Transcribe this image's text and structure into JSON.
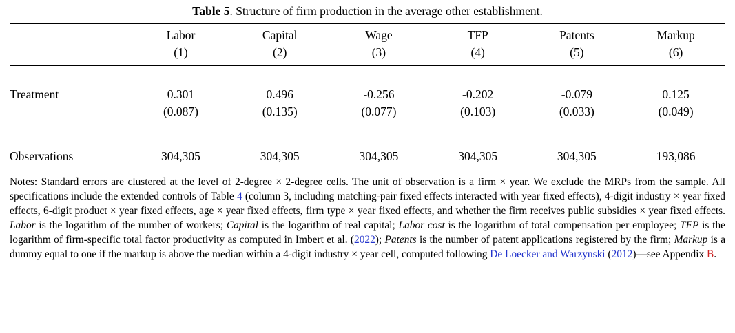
{
  "title": {
    "bold": "Table 5",
    "rest": ". Structure of firm production in the average other establishment."
  },
  "table": {
    "columns": [
      "Labor",
      "Capital",
      "Wage",
      "TFP",
      "Patents",
      "Markup"
    ],
    "column_numbers": [
      "(1)",
      "(2)",
      "(3)",
      "(4)",
      "(5)",
      "(6)"
    ],
    "row_labels": {
      "treatment": "Treatment",
      "observations": "Observations"
    },
    "treatment": [
      "0.301",
      "0.496",
      "-0.256",
      "-0.202",
      "-0.079",
      "0.125"
    ],
    "treatment_se": [
      "(0.087)",
      "(0.135)",
      "(0.077)",
      "(0.103)",
      "(0.033)",
      "(0.049)"
    ],
    "observations": [
      "304,305",
      "304,305",
      "304,305",
      "304,305",
      "304,305",
      "193,086"
    ]
  },
  "colors": {
    "link_blue": "#2233cc",
    "link_red": "#cc2020"
  },
  "notes": {
    "segments": [
      {
        "text": "Notes: Standard errors are clustered at the level of 2-degree × 2-degree cells. The unit of observation is a firm × year. We exclude the MRPs from the sample. All specifications include the extended controls of Table ",
        "style": "normal"
      },
      {
        "text": "4",
        "style": "link-blue"
      },
      {
        "text": " (column 3, including matching-pair fixed effects interacted with year fixed effects), 4-digit industry × year fixed effects, 6-digit product × year fixed effects, age × year fixed effects, firm type × year fixed effects, and whether the firm receives public subsidies × year fixed effects. ",
        "style": "normal"
      },
      {
        "text": "Labor",
        "style": "italic"
      },
      {
        "text": " is the logarithm of the number of workers; ",
        "style": "normal"
      },
      {
        "text": "Capital",
        "style": "italic"
      },
      {
        "text": " is the logarithm of real capital; ",
        "style": "normal"
      },
      {
        "text": "Labor cost",
        "style": "italic"
      },
      {
        "text": " is the logarithm of total compensation per employee; ",
        "style": "normal"
      },
      {
        "text": "TFP",
        "style": "italic"
      },
      {
        "text": " is the logarithm of firm-specific total factor productivity as computed in Imbert et al. (",
        "style": "normal"
      },
      {
        "text": "2022",
        "style": "link-blue"
      },
      {
        "text": "); ",
        "style": "normal"
      },
      {
        "text": "Patents",
        "style": "italic"
      },
      {
        "text": " is the number of patent applications registered by the firm; ",
        "style": "normal"
      },
      {
        "text": "Markup",
        "style": "italic"
      },
      {
        "text": " is a dummy equal to one if the markup is above the median within a 4-digit industry × year cell, computed following ",
        "style": "normal"
      },
      {
        "text": "De Loecker and Warzynski",
        "style": "link-blue"
      },
      {
        "text": " (",
        "style": "normal"
      },
      {
        "text": "2012",
        "style": "link-blue"
      },
      {
        "text": ")—see Appendix ",
        "style": "normal"
      },
      {
        "text": "B",
        "style": "link-red"
      },
      {
        "text": ".",
        "style": "normal"
      }
    ]
  }
}
